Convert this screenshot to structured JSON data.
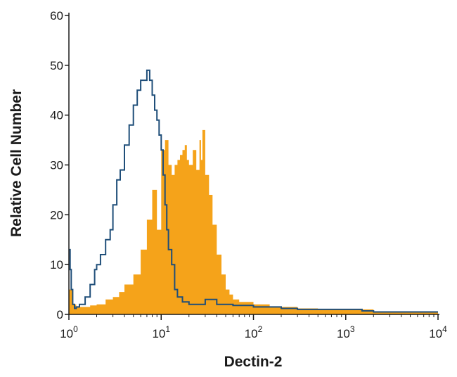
{
  "chart_data": {
    "type": "area",
    "title": "",
    "xlabel": "Dectin-2",
    "ylabel": "Relative Cell Number",
    "xscale": "log",
    "xlim": [
      1,
      10000
    ],
    "ylim": [
      0,
      60
    ],
    "grid": false,
    "x_ticks": [
      {
        "base": "10",
        "exp": "0"
      },
      {
        "base": "10",
        "exp": "1"
      },
      {
        "base": "10",
        "exp": "2"
      },
      {
        "base": "10",
        "exp": "3"
      },
      {
        "base": "10",
        "exp": "4"
      }
    ],
    "y_ticks": [
      "0",
      "10",
      "20",
      "30",
      "40",
      "50",
      "60"
    ],
    "colors": {
      "filled": "#f5a31a",
      "outline": "#1f4e79"
    },
    "series": [
      {
        "style": "filled",
        "x": [
          1,
          1.1,
          1.2,
          1.4,
          1.7,
          2,
          2.5,
          3,
          3.5,
          4,
          5,
          6,
          7,
          8,
          9,
          10,
          11,
          12,
          13,
          14,
          15,
          16,
          17,
          18,
          19,
          20,
          22,
          24,
          26,
          27,
          28,
          30,
          33,
          36,
          40,
          45,
          50,
          55,
          60,
          70,
          80,
          100,
          150,
          200,
          300,
          500,
          1000,
          1600,
          2000,
          10000
        ],
        "y": [
          5,
          2,
          1.5,
          1.5,
          1.8,
          2,
          3,
          3.5,
          4.5,
          6,
          8,
          13,
          19,
          25,
          17,
          33,
          35,
          30,
          28,
          30,
          31,
          32,
          33,
          34,
          31,
          30,
          33,
          29,
          35,
          31,
          37,
          28,
          24,
          18,
          12,
          8,
          5,
          4,
          3,
          2.5,
          2.5,
          2,
          1.5,
          1.5,
          1.2,
          1,
          1,
          1,
          0.5,
          0.3
        ]
      },
      {
        "style": "outline",
        "x": [
          1,
          1.03,
          1.06,
          1.1,
          1.15,
          1.2,
          1.3,
          1.5,
          1.7,
          1.9,
          2,
          2.2,
          2.5,
          2.8,
          3,
          3.3,
          3.6,
          4,
          4.5,
          5,
          5.5,
          6,
          6.5,
          7,
          7.5,
          8,
          8.5,
          9,
          9.5,
          10,
          10.5,
          11,
          11.5,
          12,
          13,
          14,
          15,
          17,
          20,
          25,
          30,
          40,
          50,
          60,
          100,
          200,
          300,
          500,
          1000,
          1500,
          2000,
          10000
        ],
        "y": [
          13,
          9,
          5,
          2,
          1.2,
          1.5,
          2,
          3.5,
          6,
          9,
          10,
          12,
          15,
          17,
          22,
          27,
          29,
          34,
          38,
          42,
          45,
          47,
          47,
          49,
          47,
          44,
          41,
          39,
          36,
          33,
          28,
          22,
          17,
          13,
          10,
          5,
          3.5,
          2.5,
          2,
          2,
          3,
          2,
          2,
          1.8,
          1.5,
          1.2,
          1,
          1,
          1,
          0.7,
          0.5,
          0.5
        ]
      }
    ]
  }
}
